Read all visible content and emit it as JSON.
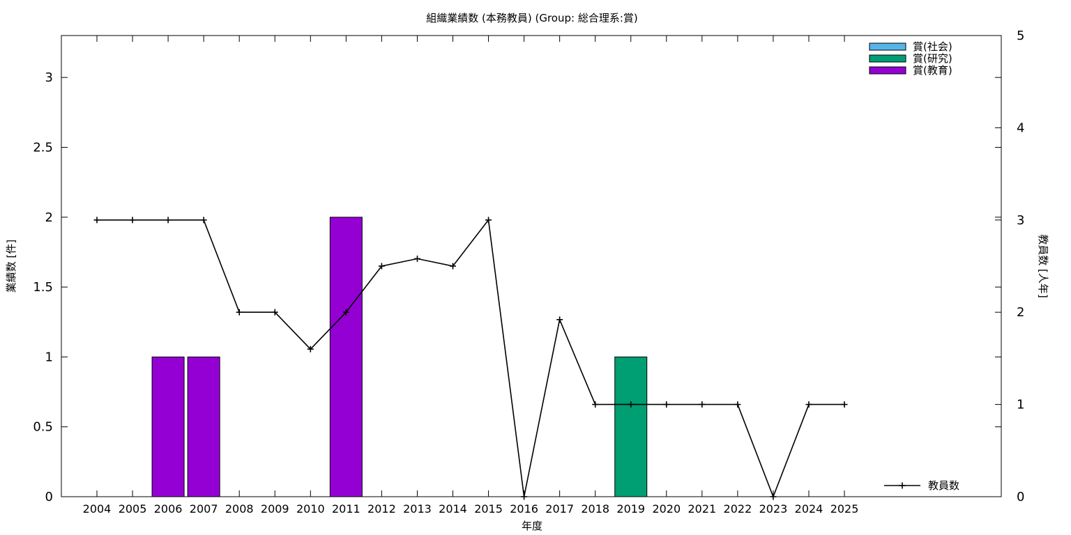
{
  "chart_data": {
    "type": "bar",
    "title": "組織業績数 (本務教員) (Group: 総合理系:賞)",
    "xlabel": "年度",
    "ylabel": "業績数 [件]",
    "y2label": "教員数 [人年]",
    "categories": [
      "2004",
      "2005",
      "2006",
      "2007",
      "2008",
      "2009",
      "2010",
      "2011",
      "2012",
      "2013",
      "2014",
      "2015",
      "2016",
      "2017",
      "2018",
      "2019",
      "2020",
      "2021",
      "2022",
      "2023",
      "2024",
      "2025"
    ],
    "ylim": [
      0,
      3.3
    ],
    "yticks": [
      "0",
      "0.5",
      "1",
      "1.5",
      "2",
      "2.5",
      "3"
    ],
    "y2lim": [
      0,
      5
    ],
    "y2ticks": [
      "0",
      "1",
      "2",
      "3",
      "4",
      "5"
    ],
    "series": [
      {
        "name": "賞(社会)",
        "color": "#56b4e9",
        "values": [
          0,
          0,
          0,
          0,
          0,
          0,
          0,
          0,
          0,
          0,
          0,
          0,
          0,
          0,
          0,
          0,
          0,
          0,
          0,
          0,
          0,
          0
        ]
      },
      {
        "name": "賞(研究)",
        "color": "#009e73",
        "values": [
          0,
          0,
          0,
          0,
          0,
          0,
          0,
          0,
          0,
          0,
          0,
          0,
          0,
          0,
          0,
          1,
          0,
          0,
          0,
          0,
          0,
          0
        ]
      },
      {
        "name": "賞(教育)",
        "color": "#9400d3",
        "values": [
          0,
          0,
          1,
          1,
          0,
          0,
          0,
          2,
          0,
          0,
          0,
          0,
          0,
          0,
          0,
          0,
          0,
          0,
          0,
          0,
          0,
          0
        ]
      }
    ],
    "line_series": {
      "name": "教員数",
      "color": "#000000",
      "axis": "y2",
      "values": [
        3,
        3,
        3,
        3,
        2,
        2,
        1.6,
        2,
        2.5,
        2.58,
        2.5,
        3,
        0,
        1.92,
        1,
        1,
        1,
        1,
        1,
        0,
        1,
        1
      ]
    },
    "legend_bars_position": "top-right",
    "legend_line_position": "bottom-right",
    "grid": false
  }
}
